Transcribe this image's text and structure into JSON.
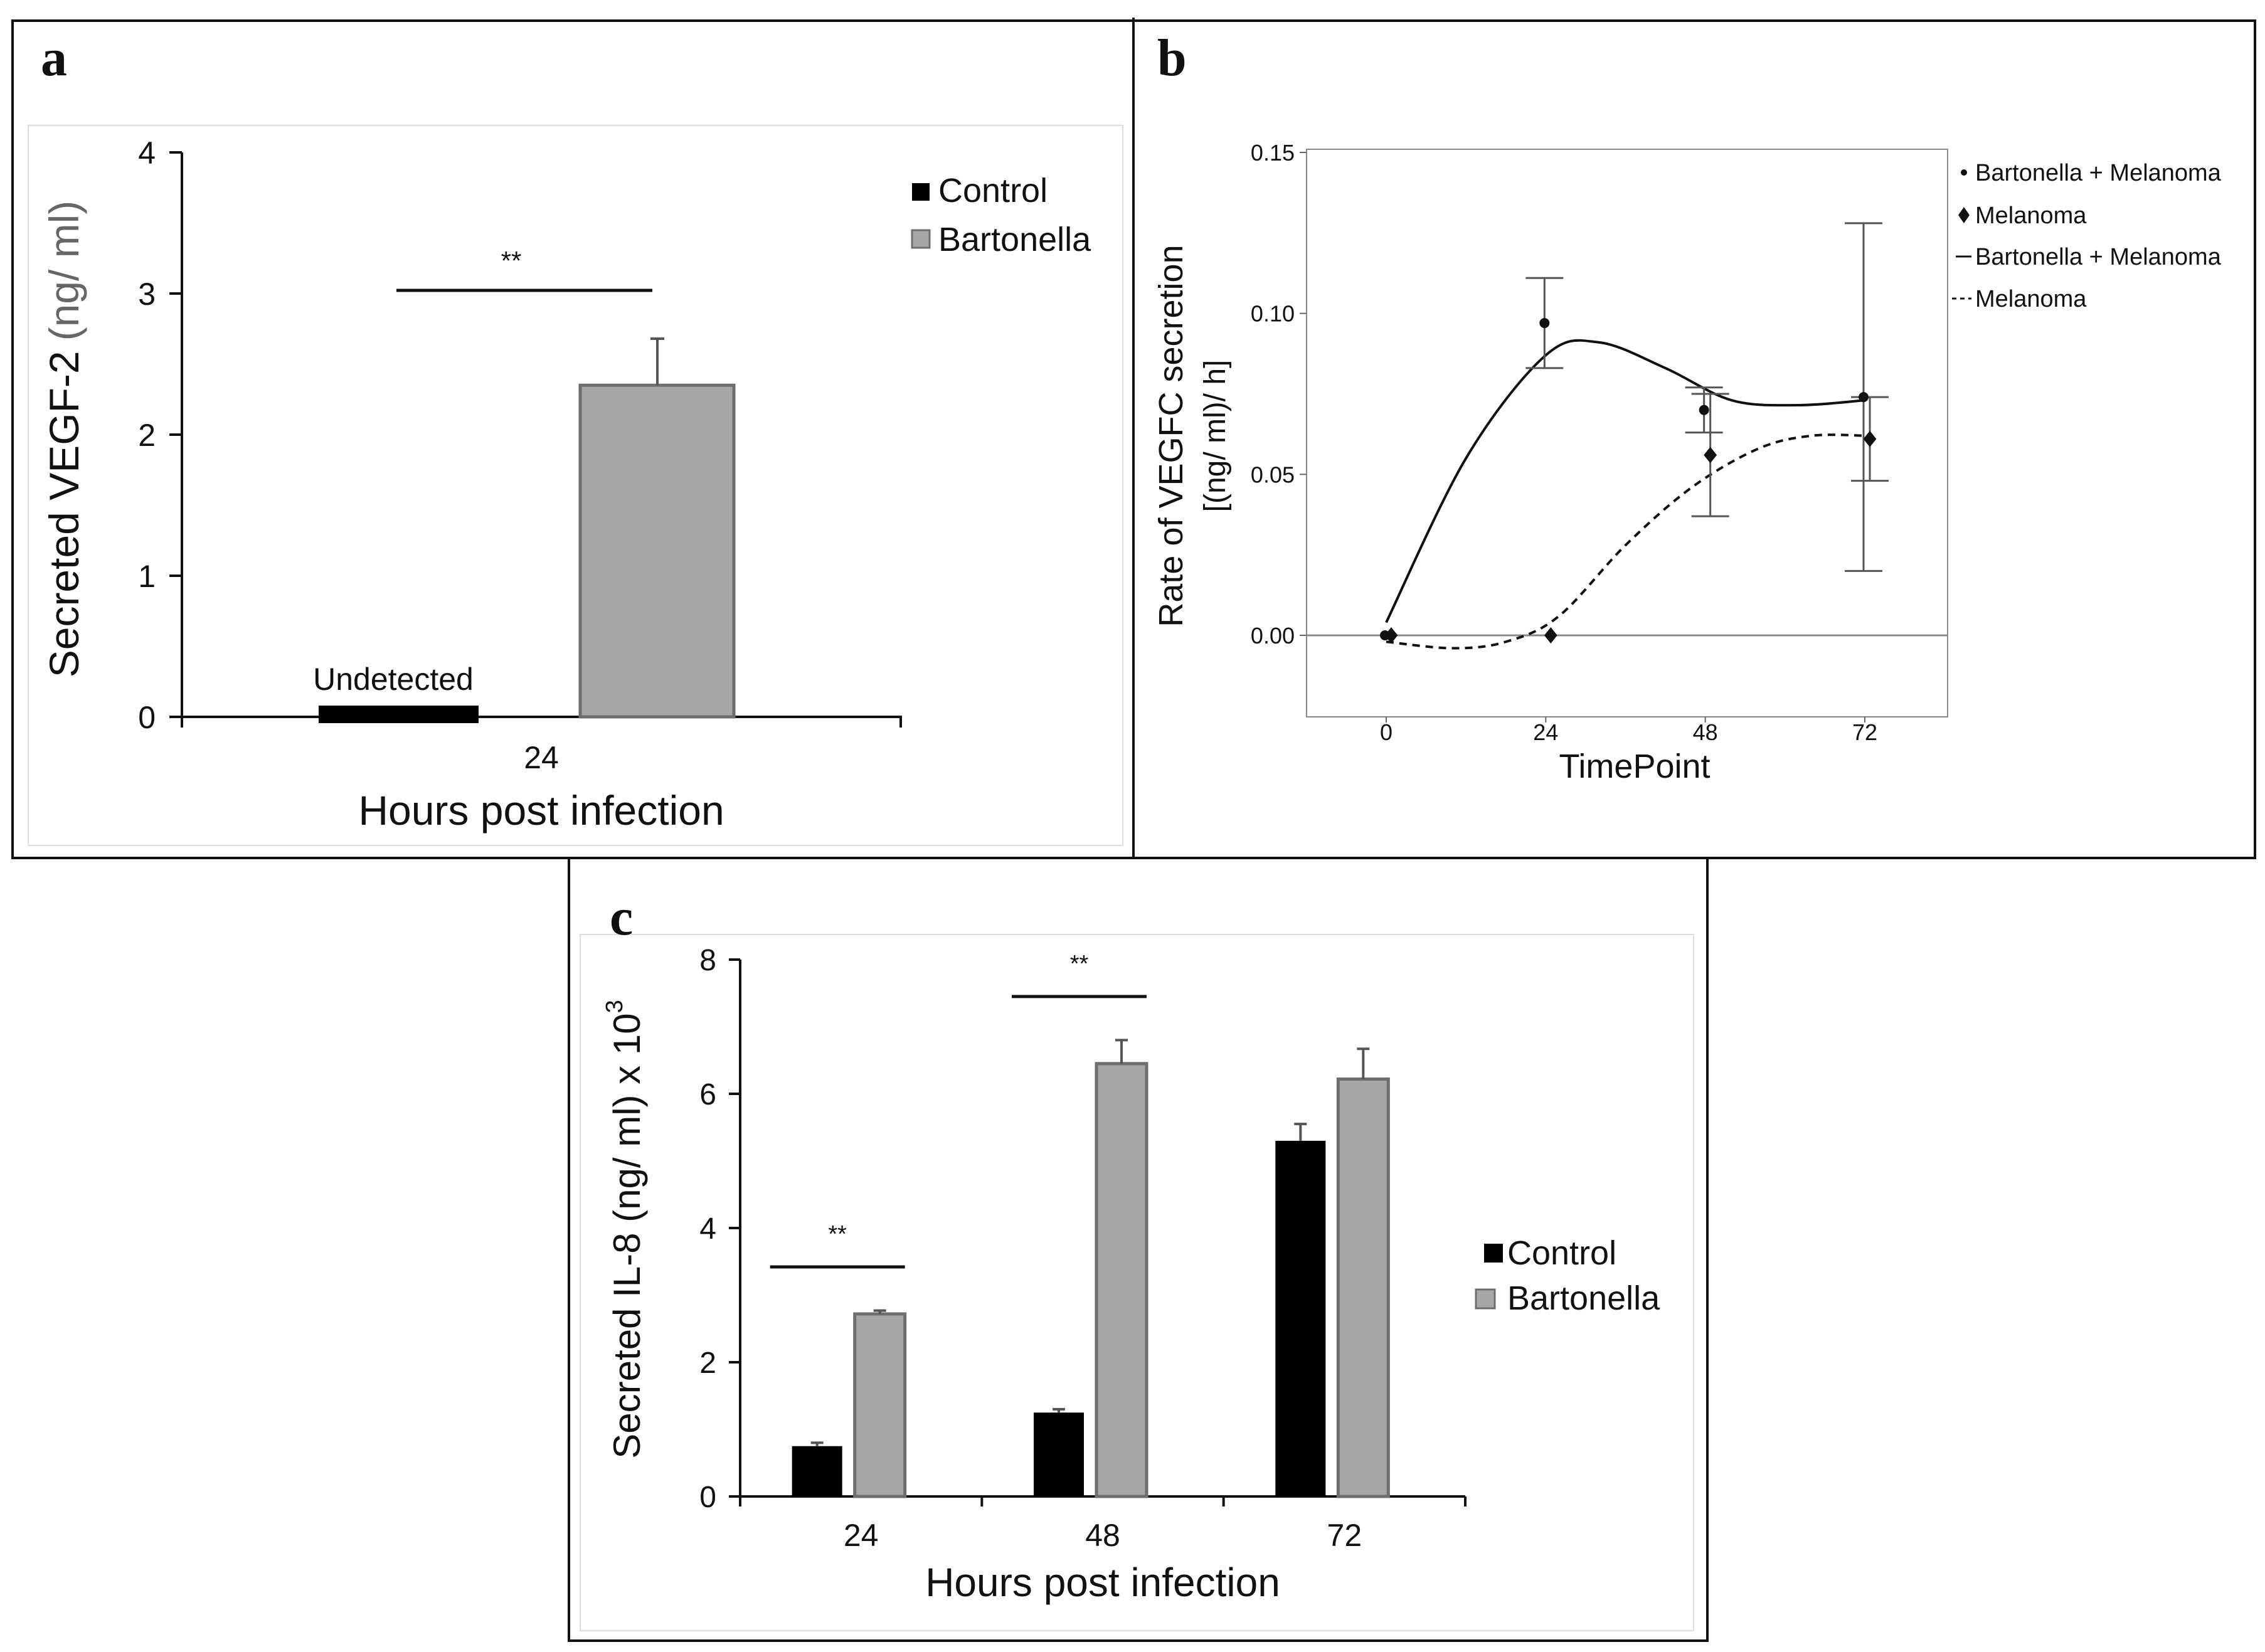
{
  "colors": {
    "control": "#000000",
    "bartonella": "#a6a6a6",
    "bar_border": "#6e6e6e",
    "axis": "#111111"
  },
  "chart_data": [
    {
      "panel": "a",
      "type": "bar",
      "categories": [
        "24"
      ],
      "series": [
        {
          "name": "Control",
          "values": [
            0
          ],
          "error": [
            0
          ],
          "bar_label": "Undetected"
        },
        {
          "name": "Bartonella",
          "values": [
            2.35
          ],
          "error": [
            0.33
          ]
        }
      ],
      "xlabel": "Hours post infection",
      "ylabel_main": "Secreted VEGF-2",
      "ylabel_units": "(ng/ ml)",
      "ylim": [
        0,
        4
      ],
      "yticks": [
        "0",
        "1",
        "2",
        "3",
        "4"
      ],
      "significance": [
        {
          "label": "**",
          "category": "24"
        }
      ],
      "legend": [
        "Control",
        "Bartonella"
      ],
      "legend_position": "top-right"
    },
    {
      "panel": "b",
      "type": "scatter",
      "x": [
        0,
        24,
        48,
        72
      ],
      "series": [
        {
          "name": "Bartonella + Melanoma",
          "points": [
            0,
            0.097,
            0.07,
            0.074
          ],
          "error": [
            0,
            0.014,
            0.007,
            0.054
          ],
          "fit_line": "solid"
        },
        {
          "name": "Melanoma",
          "points": [
            0,
            0,
            0.056,
            0.061
          ],
          "error": [
            0,
            0,
            0.019,
            0.013
          ],
          "fit_line": "dashed"
        }
      ],
      "xlabel": "TimePoint",
      "ylabel_line1": "Rate of VEGFC secretion",
      "ylabel_line2": "[(ng/ ml)/ h]",
      "xticks": [
        "0",
        "24",
        "48",
        "72"
      ],
      "yticks": [
        "0.00",
        "0.05",
        "0.10",
        "0.15"
      ],
      "ylim": [
        -0.025,
        0.15
      ],
      "legend": [
        "Bartonella + Melanoma",
        "Melanoma",
        "Bartonella + Melanoma",
        "Melanoma"
      ],
      "legend_position": "right"
    },
    {
      "panel": "c",
      "type": "bar",
      "categories": [
        "24",
        "48",
        "72"
      ],
      "series": [
        {
          "name": "Control",
          "values": [
            0.75,
            1.25,
            5.3
          ],
          "error": [
            0.05,
            0.05,
            0.25
          ]
        },
        {
          "name": "Bartonella",
          "values": [
            2.72,
            6.45,
            6.22
          ],
          "error": [
            0.05,
            0.35,
            0.45
          ]
        }
      ],
      "xlabel": "Hours post infection",
      "ylabel": "Secreted IL-8 (ng/ ml) x 10",
      "ylabel_sup": "3",
      "ylim": [
        0,
        8
      ],
      "yticks": [
        "0",
        "2",
        "4",
        "6",
        "8"
      ],
      "significance": [
        {
          "label": "**",
          "category": "24"
        },
        {
          "label": "**",
          "category": "48"
        }
      ],
      "legend": [
        "Control",
        "Bartonella"
      ],
      "legend_position": "right"
    }
  ]
}
